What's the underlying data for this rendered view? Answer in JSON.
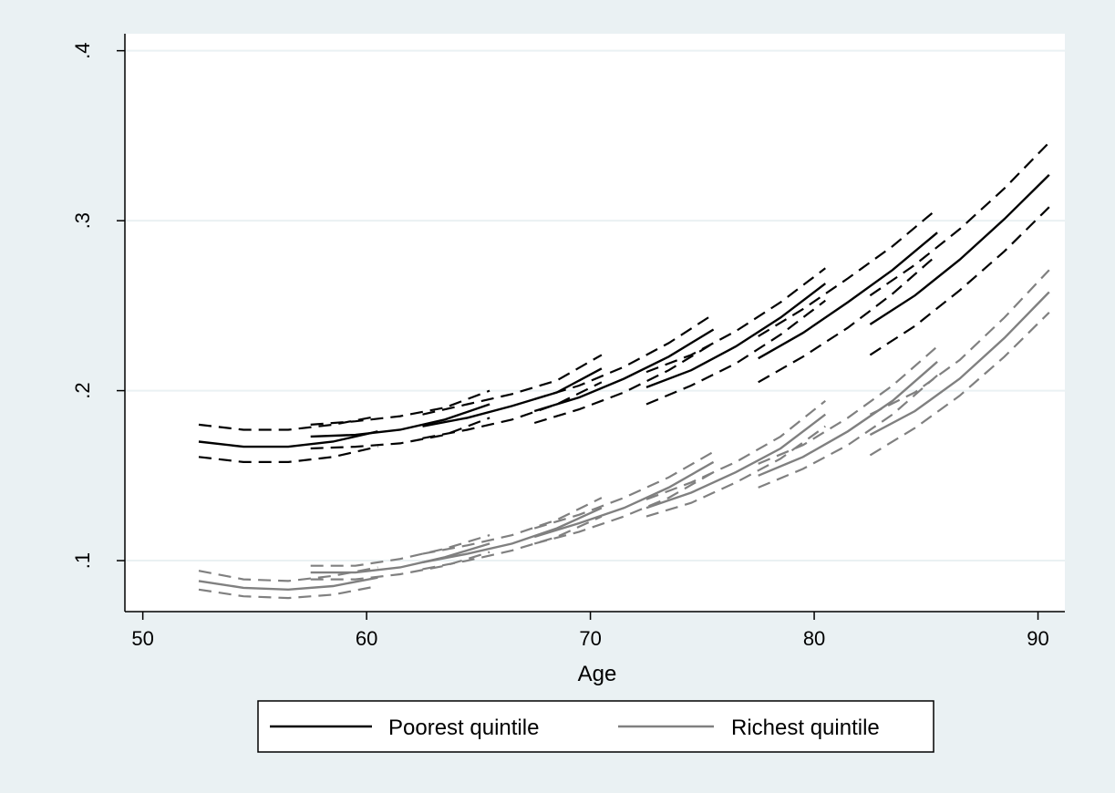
{
  "colors": {
    "outer_background": "#eaf1f3",
    "plot_background": "#ffffff",
    "gridline": "#eaf1f3",
    "poorest": "#000000",
    "richest": "#808080"
  },
  "chart_data": {
    "type": "line",
    "xlabel": "Age",
    "ylabel": "",
    "xlim": [
      49.2,
      91.2
    ],
    "ylim": [
      0.07,
      0.41
    ],
    "xticks": [
      50,
      60,
      70,
      80,
      90
    ],
    "xtick_labels": [
      "50",
      "60",
      "70",
      "80",
      "90"
    ],
    "yticks": [
      0.1,
      0.2,
      0.3,
      0.4
    ],
    "ytick_labels": [
      ".1",
      ".2",
      ".3",
      ".4"
    ],
    "grid": true,
    "legend_position": "bottom",
    "series": [
      {
        "name": "Poorest quintile",
        "color": "#000000",
        "segments": [
          {
            "x": [
              52.5,
              54.5,
              56.5,
              58.5,
              60.5
            ],
            "y": [
              0.17,
              0.167,
              0.167,
              0.17,
              0.176
            ],
            "lower": [
              0.161,
              0.158,
              0.158,
              0.161,
              0.167
            ],
            "upper": [
              0.18,
              0.177,
              0.177,
              0.18,
              0.185
            ]
          },
          {
            "x": [
              57.5,
              59.5,
              61.5,
              63.5,
              65.5
            ],
            "y": [
              0.173,
              0.174,
              0.177,
              0.183,
              0.192
            ],
            "lower": [
              0.166,
              0.167,
              0.169,
              0.174,
              0.184
            ],
            "upper": [
              0.18,
              0.182,
              0.185,
              0.19,
              0.2
            ]
          },
          {
            "x": [
              62.5,
              64.5,
              66.5,
              68.5,
              70.5
            ],
            "y": [
              0.179,
              0.184,
              0.191,
              0.199,
              0.213
            ],
            "lower": [
              0.172,
              0.177,
              0.183,
              0.192,
              0.205
            ],
            "upper": [
              0.186,
              0.192,
              0.198,
              0.206,
              0.221
            ]
          },
          {
            "x": [
              67.5,
              69.5,
              71.5,
              73.5,
              75.5
            ],
            "y": [
              0.188,
              0.196,
              0.207,
              0.22,
              0.236
            ],
            "lower": [
              0.181,
              0.189,
              0.199,
              0.212,
              0.228
            ],
            "upper": [
              0.195,
              0.203,
              0.214,
              0.228,
              0.245
            ]
          },
          {
            "x": [
              72.5,
              74.5,
              76.5,
              78.5,
              80.5
            ],
            "y": [
              0.202,
              0.212,
              0.226,
              0.243,
              0.263
            ],
            "lower": [
              0.192,
              0.203,
              0.216,
              0.233,
              0.253
            ],
            "upper": [
              0.211,
              0.221,
              0.235,
              0.252,
              0.272
            ]
          },
          {
            "x": [
              77.5,
              79.5,
              81.5,
              83.5,
              85.5
            ],
            "y": [
              0.219,
              0.234,
              0.252,
              0.271,
              0.293
            ],
            "lower": [
              0.205,
              0.22,
              0.237,
              0.257,
              0.28
            ],
            "upper": [
              0.232,
              0.248,
              0.266,
              0.285,
              0.307
            ]
          },
          {
            "x": [
              82.5,
              84.5,
              86.5,
              88.5,
              90.5
            ],
            "y": [
              0.239,
              0.256,
              0.277,
              0.301,
              0.327
            ],
            "lower": [
              0.221,
              0.238,
              0.259,
              0.282,
              0.308
            ],
            "upper": [
              0.256,
              0.274,
              0.295,
              0.319,
              0.346
            ]
          }
        ]
      },
      {
        "name": "Richest quintile",
        "color": "#808080",
        "segments": [
          {
            "x": [
              52.5,
              54.5,
              56.5,
              58.5,
              60.5
            ],
            "y": [
              0.088,
              0.084,
              0.083,
              0.085,
              0.09
            ],
            "lower": [
              0.083,
              0.079,
              0.078,
              0.08,
              0.085
            ],
            "upper": [
              0.094,
              0.089,
              0.088,
              0.091,
              0.096
            ]
          },
          {
            "x": [
              57.5,
              59.5,
              61.5,
              63.5,
              65.5
            ],
            "y": [
              0.093,
              0.093,
              0.096,
              0.102,
              0.11
            ],
            "lower": [
              0.089,
              0.089,
              0.092,
              0.097,
              0.105
            ],
            "upper": [
              0.097,
              0.097,
              0.101,
              0.107,
              0.115
            ]
          },
          {
            "x": [
              62.5,
              64.5,
              66.5,
              68.5,
              70.5
            ],
            "y": [
              0.099,
              0.104,
              0.11,
              0.119,
              0.131
            ],
            "lower": [
              0.095,
              0.1,
              0.106,
              0.114,
              0.126
            ],
            "upper": [
              0.104,
              0.109,
              0.115,
              0.124,
              0.137
            ]
          },
          {
            "x": [
              67.5,
              69.5,
              71.5,
              73.5,
              75.5
            ],
            "y": [
              0.114,
              0.122,
              0.131,
              0.143,
              0.158
            ],
            "lower": [
              0.11,
              0.117,
              0.126,
              0.137,
              0.152
            ],
            "upper": [
              0.119,
              0.127,
              0.137,
              0.149,
              0.164
            ]
          },
          {
            "x": [
              72.5,
              74.5,
              76.5,
              78.5,
              80.5
            ],
            "y": [
              0.131,
              0.14,
              0.152,
              0.166,
              0.186
            ],
            "lower": [
              0.126,
              0.134,
              0.146,
              0.16,
              0.179
            ],
            "upper": [
              0.136,
              0.146,
              0.158,
              0.173,
              0.194
            ]
          },
          {
            "x": [
              77.5,
              79.5,
              81.5,
              83.5,
              85.5
            ],
            "y": [
              0.15,
              0.161,
              0.176,
              0.194,
              0.217
            ],
            "lower": [
              0.143,
              0.154,
              0.168,
              0.186,
              0.209
            ],
            "upper": [
              0.157,
              0.168,
              0.184,
              0.203,
              0.226
            ]
          },
          {
            "x": [
              82.5,
              84.5,
              86.5,
              88.5,
              90.5
            ],
            "y": [
              0.174,
              0.188,
              0.207,
              0.231,
              0.258
            ],
            "lower": [
              0.162,
              0.178,
              0.197,
              0.22,
              0.246
            ],
            "upper": [
              0.186,
              0.199,
              0.218,
              0.243,
              0.271
            ]
          }
        ]
      }
    ],
    "legend": [
      {
        "label": "Poorest quintile",
        "color": "#000000"
      },
      {
        "label": "Richest quintile",
        "color": "#808080"
      }
    ]
  }
}
